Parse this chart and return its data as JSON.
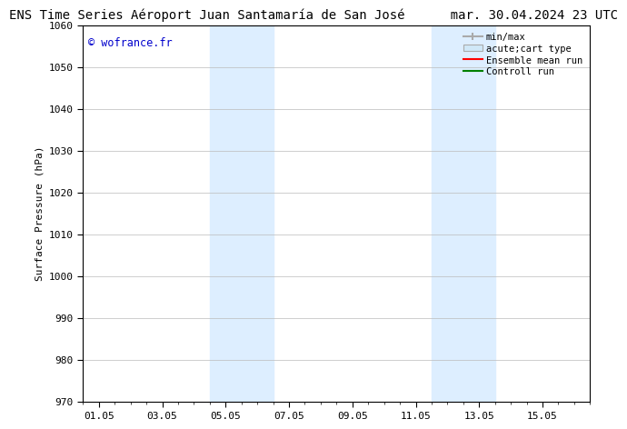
{
  "title_left": "ENS Time Series Aéroport Juan Santamaría de San José",
  "title_right": "mar. 30.04.2024 23 UTC",
  "ylabel": "Surface Pressure (hPa)",
  "ylim": [
    970,
    1060
  ],
  "yticks": [
    970,
    980,
    990,
    1000,
    1010,
    1020,
    1030,
    1040,
    1050,
    1060
  ],
  "xtick_labels": [
    "01.05",
    "03.05",
    "05.05",
    "07.05",
    "09.05",
    "11.05",
    "13.05",
    "15.05"
  ],
  "xtick_positions": [
    0,
    2,
    4,
    6,
    8,
    10,
    12,
    14
  ],
  "xlim": [
    -0.5,
    15.5
  ],
  "shaded_bands": [
    {
      "x_start": 3.5,
      "x_end": 5.5,
      "color": "#ddeeff"
    },
    {
      "x_start": 10.5,
      "x_end": 12.5,
      "color": "#ddeeff"
    }
  ],
  "watermark_text": "© wofrance.fr",
  "watermark_color": "#0000cc",
  "bg_color": "#ffffff",
  "plot_bg_color": "#ffffff",
  "grid_color": "#bbbbbb",
  "legend_items": [
    {
      "label": "min/max",
      "color": "#aaaaaa",
      "lw": 1.2,
      "style": "minmax"
    },
    {
      "label": "acute;cart type",
      "color": "#d0e8f8",
      "lw": 8,
      "style": "rect"
    },
    {
      "label": "Ensemble mean run",
      "color": "#ff0000",
      "lw": 1.5,
      "style": "line"
    },
    {
      "label": "Controll run",
      "color": "#008000",
      "lw": 1.5,
      "style": "line"
    }
  ],
  "font_family": "DejaVu Sans Mono",
  "title_fontsize": 10,
  "tick_fontsize": 8,
  "label_fontsize": 8,
  "legend_fontsize": 7.5
}
